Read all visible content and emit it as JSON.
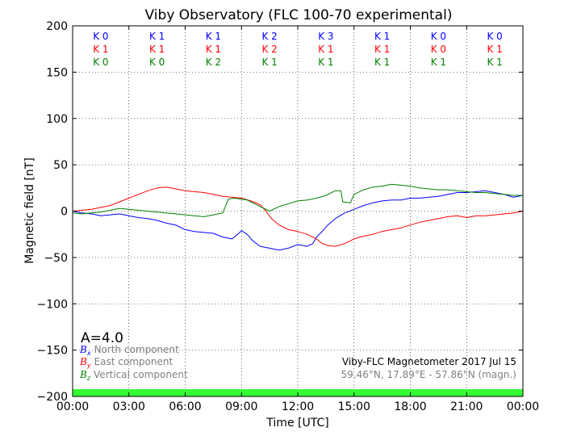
{
  "chart_data": {
    "type": "line",
    "title": "Viby Observatory (FLC 100-70 experimental)",
    "xlabel": "Time [UTC]",
    "ylabel": "Magnetic field [nT]",
    "xlim": [
      0,
      24
    ],
    "ylim": [
      -200,
      200
    ],
    "xticks": [
      0,
      3,
      6,
      9,
      12,
      15,
      18,
      21,
      24
    ],
    "xtick_labels": [
      "00:00",
      "03:00",
      "06:00",
      "09:00",
      "12:00",
      "15:00",
      "18:00",
      "21:00",
      "00:00"
    ],
    "yticks": [
      -200,
      -150,
      -100,
      -50,
      0,
      50,
      100,
      150,
      200
    ],
    "ytick_labels": [
      "−200",
      "−150",
      "−100",
      "−50",
      "0",
      "50",
      "100",
      "150",
      "200"
    ],
    "grid": true,
    "series": [
      {
        "name": "North component",
        "symbol": "B",
        "subscript": "x",
        "color": "#0000ff",
        "x": [
          0,
          0.5,
          1,
          1.5,
          2,
          2.5,
          3,
          3.5,
          4,
          4.5,
          5,
          5.5,
          5.8,
          6,
          6.5,
          7,
          7.5,
          8,
          8.5,
          8.8,
          9,
          9.3,
          9.6,
          10,
          10.5,
          11,
          11.5,
          12,
          12.5,
          12.8,
          13,
          13.3,
          13.6,
          14,
          14.5,
          15,
          15.5,
          16,
          16.5,
          17,
          17.5,
          18,
          18.5,
          19,
          19.5,
          20,
          20.5,
          21,
          21.5,
          22,
          22.5,
          23,
          23.5,
          24
        ],
        "y": [
          0,
          -2,
          -3,
          -5,
          -4,
          -3,
          -5,
          -7,
          -8,
          -10,
          -13,
          -15,
          -18,
          -20,
          -22,
          -23,
          -24,
          -28,
          -30,
          -25,
          -21,
          -25,
          -32,
          -38,
          -40,
          -42,
          -40,
          -36,
          -38,
          -35,
          -28,
          -22,
          -15,
          -8,
          -2,
          2,
          6,
          9,
          11,
          12,
          12,
          14,
          14,
          15,
          16,
          18,
          20,
          20,
          21,
          22,
          20,
          18,
          15,
          17
        ]
      },
      {
        "name": "East component",
        "symbol": "B",
        "subscript": "y",
        "color": "#ff0000",
        "x": [
          0,
          0.5,
          1,
          1.5,
          2,
          2.5,
          3,
          3.5,
          4,
          4.5,
          5,
          5.5,
          6,
          6.5,
          7,
          7.5,
          8,
          8.5,
          9,
          9.5,
          10,
          10.3,
          10.6,
          11,
          11.5,
          12,
          12.5,
          13,
          13.3,
          13.6,
          14,
          14.5,
          15,
          15.5,
          16,
          16.5,
          17,
          17.5,
          18,
          18.5,
          19,
          19.5,
          20,
          20.5,
          21,
          21.5,
          22,
          22.5,
          23,
          23.5,
          24
        ],
        "y": [
          0,
          1,
          2,
          4,
          6,
          10,
          14,
          18,
          22,
          25,
          26,
          24,
          22,
          21,
          20,
          18,
          16,
          15,
          14,
          11,
          7,
          0,
          -8,
          -15,
          -20,
          -22,
          -25,
          -30,
          -35,
          -37,
          -38,
          -35,
          -30,
          -27,
          -25,
          -22,
          -20,
          -18,
          -15,
          -12,
          -10,
          -8,
          -6,
          -5,
          -7,
          -5,
          -5,
          -4,
          -3,
          -2,
          0
        ]
      },
      {
        "name": "Vertical component",
        "symbol": "B",
        "subscript": "z",
        "color": "#008000",
        "x": [
          0,
          0.5,
          1,
          1.5,
          2,
          2.5,
          3,
          3.5,
          4,
          4.5,
          5,
          5.5,
          6,
          6.5,
          7,
          7.5,
          8,
          8.3,
          8.6,
          9,
          9.3,
          9.6,
          10,
          10.5,
          11,
          11.5,
          12,
          12.5,
          13,
          13.5,
          14,
          14.3,
          14.4,
          14.8,
          15,
          15.5,
          16,
          16.5,
          17,
          17.5,
          18,
          18.5,
          19,
          19.5,
          20,
          20.5,
          21,
          21.5,
          22,
          22.5,
          23,
          23.5,
          24
        ],
        "y": [
          -2,
          -3,
          -2,
          -1,
          1,
          3,
          2,
          1,
          0,
          -1,
          -2,
          -3,
          -4,
          -5,
          -6,
          -4,
          -2,
          13,
          14,
          13,
          12,
          9,
          5,
          0,
          5,
          8,
          11,
          12,
          14,
          17,
          22,
          22,
          10,
          9,
          18,
          23,
          26,
          27,
          29,
          28,
          27,
          25,
          24,
          23,
          23,
          22,
          21,
          20,
          20,
          19,
          18,
          17,
          17
        ]
      }
    ],
    "k_index": {
      "colors": [
        "#0000ff",
        "#ff0000",
        "#008000"
      ],
      "rows": [
        [
          "K 0",
          "K 1",
          "K 1",
          "K 2",
          "K 3",
          "K 1",
          "K 0",
          "K 0"
        ],
        [
          "K 1",
          "K 1",
          "K 1",
          "K 2",
          "K 1",
          "K 1",
          "K 0",
          "K 1"
        ],
        [
          "K 0",
          "K 0",
          "K 2",
          "K 1",
          "K 1",
          "K 1",
          "K 1",
          "K 1"
        ]
      ]
    },
    "a_index_label": "A=4.0",
    "footer_title": "Viby-FLC Magnetometer 2017 Jul 15",
    "footer_coords": "59.46°N, 17.89°E - 57.86°N (magn.)",
    "status_bar_color": "#33ff33"
  }
}
